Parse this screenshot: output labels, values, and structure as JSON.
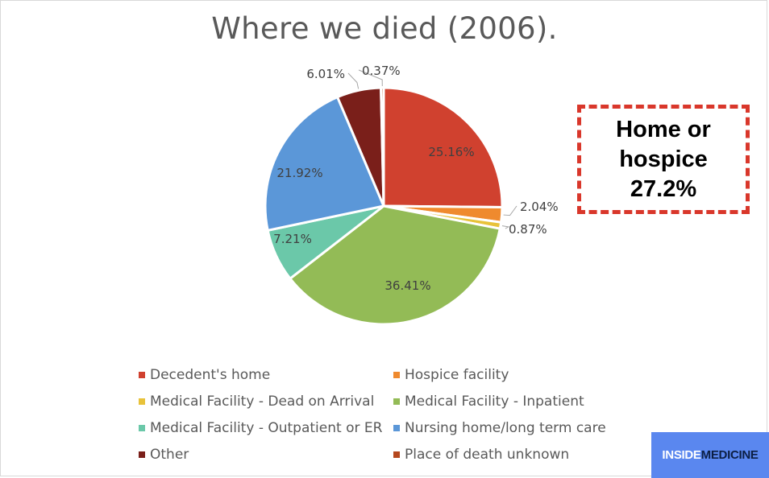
{
  "chart_data": {
    "type": "pie",
    "title": "Where we died (2006).",
    "slices": [
      {
        "label": "Decedent's home",
        "value": 25.16,
        "data_label": "25.16%",
        "color": "#d0412f"
      },
      {
        "label": "Hospice facility",
        "value": 2.04,
        "data_label": "2.04%",
        "color": "#ef8a2e"
      },
      {
        "label": "Medical Facility - Dead on Arrival",
        "value": 0.87,
        "data_label": "0.87%",
        "color": "#e8c23a"
      },
      {
        "label": "Medical Facility - Inpatient",
        "value": 36.41,
        "data_label": "36.41%",
        "color": "#93bb56"
      },
      {
        "label": "Medical Facility - Outpatient or ER",
        "value": 7.21,
        "data_label": "7.21%",
        "color": "#6bc8a9"
      },
      {
        "label": "Nursing home/long term care",
        "value": 21.92,
        "data_label": "21.92%",
        "color": "#5b97d8"
      },
      {
        "label": "Other",
        "value": 6.01,
        "data_label": "6.01%",
        "color": "#7a1f1a"
      },
      {
        "label": "Place of death unknown",
        "value": 0.37,
        "data_label": "0.37%",
        "color": "#b5481e"
      }
    ],
    "legend_position": "bottom"
  },
  "callout": {
    "line1": "Home or",
    "line2": "hospice",
    "line3": "27.2%",
    "border_color": "#d9372b"
  },
  "brand": {
    "part1": "INSIDE",
    "part2": "MEDICINE",
    "background": "#5a87ef"
  }
}
